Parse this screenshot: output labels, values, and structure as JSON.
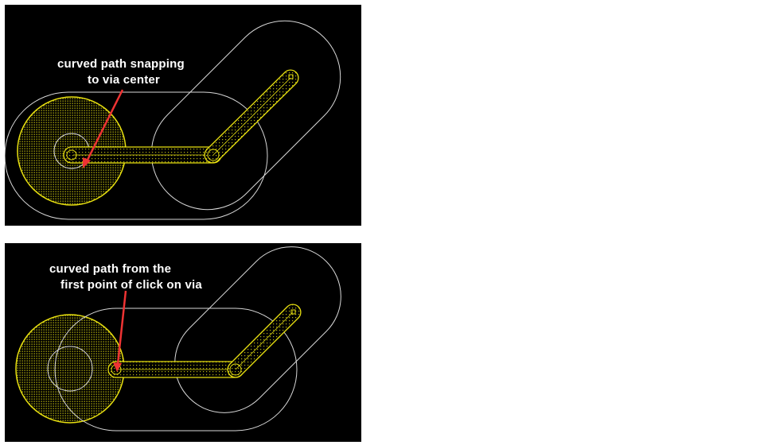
{
  "top_panel": {
    "annotation_line1": "curved path snapping",
    "annotation_line2": "to via center"
  },
  "bottom_panel": {
    "annotation_line1": "curved path from the",
    "annotation_line2": "first point of click on via"
  },
  "colors": {
    "background": "#000000",
    "via_yellow": "#e8e010",
    "outline_white": "#d8d8d8",
    "arrow_red": "#ee3333",
    "text": "#ffffff"
  }
}
